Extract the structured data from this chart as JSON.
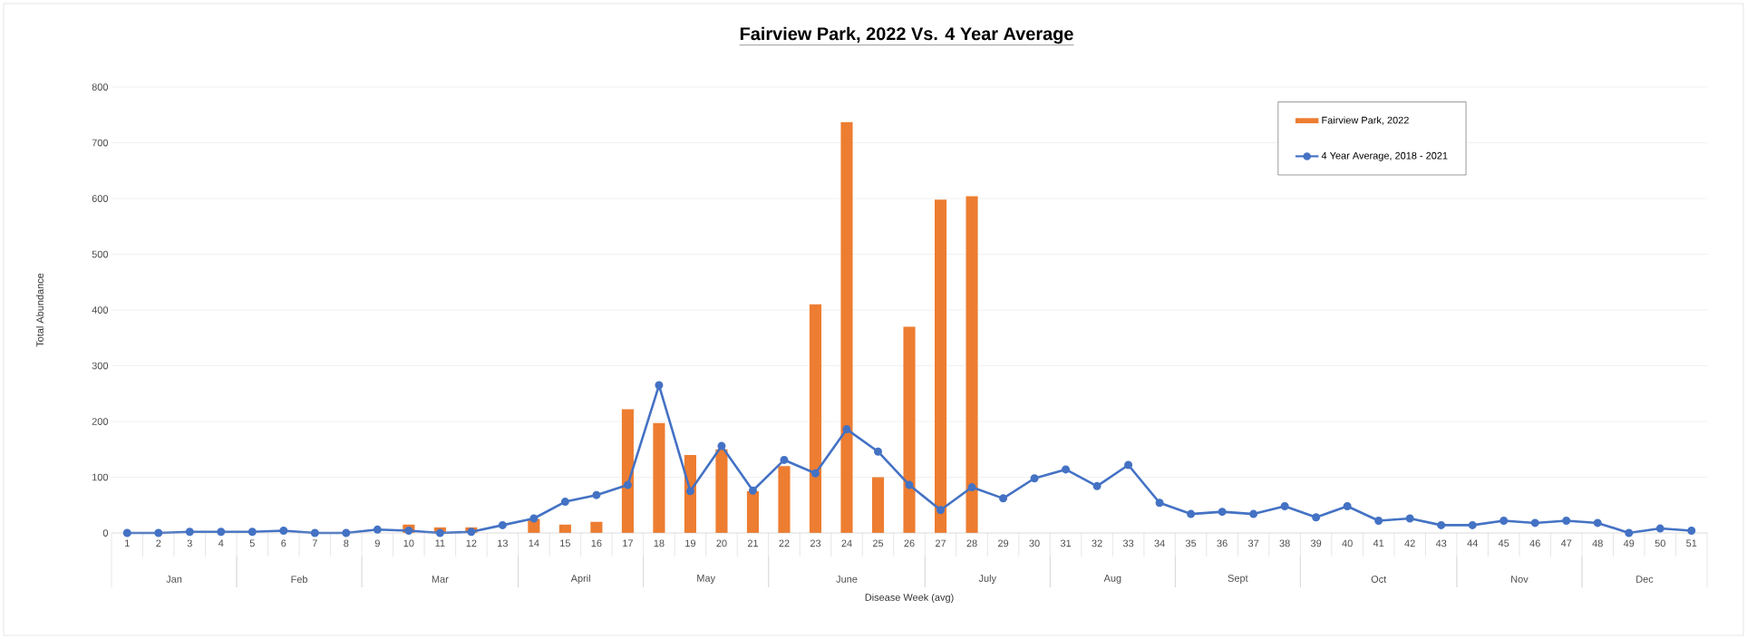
{
  "chart_data": {
    "type": "bar",
    "title": "**Fairview Park, 2022 Vs. 4 Year Average**",
    "xlabel": "Disease Week (avg)",
    "ylabel": "Total Abundance",
    "categories": [
      "1",
      "2",
      "3",
      "4",
      "5",
      "6",
      "7",
      "8",
      "9",
      "10",
      "11",
      "12",
      "13",
      "14",
      "15",
      "16",
      "17",
      "18",
      "19",
      "20",
      "21",
      "22",
      "23",
      "24",
      "25",
      "26",
      "27",
      "28",
      "29",
      "30",
      "31",
      "32",
      "33",
      "34",
      "35",
      "36",
      "37",
      "38",
      "39",
      "40",
      "41",
      "42",
      "43",
      "44",
      "45",
      "46",
      "47",
      "48",
      "49",
      "50",
      "51"
    ],
    "series": [
      {
        "name": "Fairview Park, 2022",
        "color": "#ed7d31",
        "values": [
          null,
          null,
          null,
          null,
          null,
          null,
          null,
          null,
          null,
          15,
          10,
          10,
          null,
          25,
          15,
          20,
          222,
          197,
          140,
          150,
          75,
          120,
          410,
          737,
          100,
          370,
          598,
          604,
          null,
          null,
          null,
          null,
          null,
          null,
          null,
          null,
          null,
          null,
          null,
          null,
          null,
          null,
          null,
          null,
          null,
          null,
          null,
          null,
          null,
          null,
          null
        ]
      },
      {
        "name": "4 Year Average, 2018 - 2021",
        "type": "line",
        "color": "#4472c4",
        "marker": "circle",
        "line_style": "solid",
        "values": [
          0,
          0,
          2,
          2,
          2,
          4,
          0,
          0,
          6,
          4,
          0,
          2,
          14,
          26,
          56,
          68,
          86,
          265,
          75,
          156,
          76,
          131,
          107,
          186,
          146,
          86,
          41,
          82,
          62,
          98,
          114,
          84,
          122,
          54,
          34,
          38,
          34,
          48,
          28,
          48,
          22,
          26,
          14,
          14,
          22,
          18,
          22,
          18,
          0,
          8,
          4
        ]
      }
    ],
    "annotations": [
      "Jan",
      "Feb",
      "Mar",
      "April",
      "May",
      "June",
      "July",
      "Aug",
      "Sept",
      "Oct",
      "Nov",
      "Dec"
    ],
    "ylim": [
      0,
      800
    ],
    "yticks": [
      0,
      100,
      200,
      300,
      400,
      500,
      600,
      700,
      800
    ],
    "grid": "y",
    "legend": "top right"
  }
}
